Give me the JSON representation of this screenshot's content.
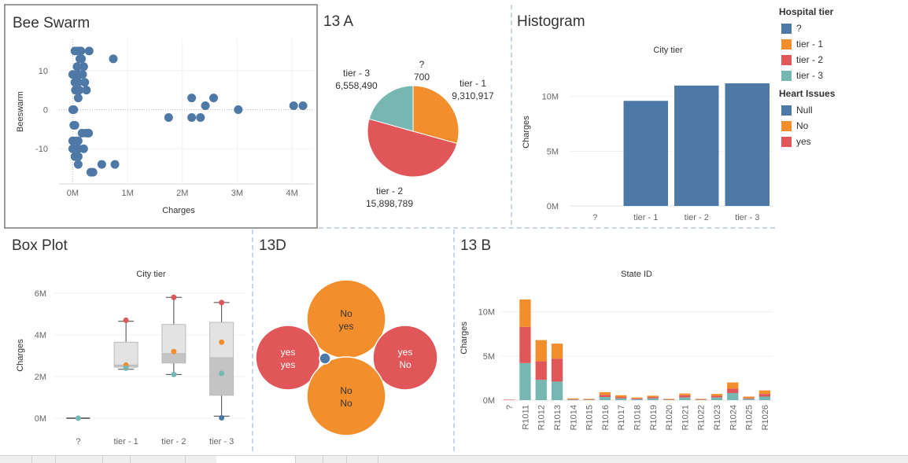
{
  "colors": {
    "blue": "#4e79a7",
    "orange": "#f28e2b",
    "red": "#e15759",
    "teal": "#76b7b2",
    "grid": "#ececec"
  },
  "titles": {
    "beeswarm": "Bee Swarm",
    "pie": "13 A",
    "histogram": "Histogram",
    "boxplot": "Box Plot",
    "bubbles": "13D",
    "stacked": "13 B"
  },
  "legend": {
    "groups": [
      {
        "title": "Hospital tier",
        "items": [
          {
            "label": "?",
            "color": "#4e79a7"
          },
          {
            "label": "tier - 1",
            "color": "#f28e2b"
          },
          {
            "label": "tier - 2",
            "color": "#e15759"
          },
          {
            "label": "tier - 3",
            "color": "#76b7b2"
          }
        ]
      },
      {
        "title": "Heart Issues",
        "items": [
          {
            "label": "Null",
            "color": "#4e79a7"
          },
          {
            "label": "No",
            "color": "#f28e2b"
          },
          {
            "label": "yes",
            "color": "#e15759"
          }
        ]
      }
    ]
  },
  "chart_data": [
    {
      "id": "beeswarm",
      "type": "scatter",
      "xlabel": "Charges",
      "ylabel": "Beeswarm",
      "xticks": [
        "0M",
        "1M",
        "2M",
        "3M",
        "4M"
      ],
      "yticks": [
        "10",
        "0",
        "-10"
      ],
      "xlim": [
        -0.25,
        4.4
      ],
      "ylim": [
        -19,
        18
      ],
      "points": [
        [
          0.04,
          15
        ],
        [
          0.1,
          15
        ],
        [
          0.15,
          15
        ],
        [
          0.3,
          15
        ],
        [
          0.74,
          13
        ],
        [
          0.13,
          13
        ],
        [
          0.16,
          13
        ],
        [
          0.08,
          11
        ],
        [
          0.2,
          11
        ],
        [
          0.0,
          9
        ],
        [
          0.07,
          9
        ],
        [
          0.12,
          9
        ],
        [
          0.18,
          9
        ],
        [
          0.04,
          7
        ],
        [
          0.1,
          7
        ],
        [
          0.22,
          7
        ],
        [
          0.05,
          5
        ],
        [
          0.12,
          5
        ],
        [
          0.25,
          5
        ],
        [
          0.1,
          3
        ],
        [
          0.0,
          0
        ],
        [
          0.02,
          0
        ],
        [
          3.02,
          0
        ],
        [
          0.02,
          -4
        ],
        [
          0.04,
          -4
        ],
        [
          0.17,
          -6
        ],
        [
          0.25,
          -6
        ],
        [
          0.29,
          -6
        ],
        [
          0.0,
          -8
        ],
        [
          0.06,
          -8
        ],
        [
          0.1,
          -8
        ],
        [
          0.0,
          -10
        ],
        [
          0.1,
          -10
        ],
        [
          0.2,
          -10
        ],
        [
          0.04,
          -12
        ],
        [
          0.1,
          -12
        ],
        [
          0.1,
          -14
        ],
        [
          0.53,
          -14
        ],
        [
          0.77,
          -14
        ],
        [
          0.33,
          -16
        ],
        [
          0.37,
          -16
        ],
        [
          2.17,
          3
        ],
        [
          2.57,
          3
        ],
        [
          2.42,
          1
        ],
        [
          4.03,
          1
        ],
        [
          4.2,
          1
        ],
        [
          1.75,
          -2
        ],
        [
          2.17,
          -2
        ],
        [
          2.33,
          -2
        ]
      ]
    },
    {
      "id": "pie",
      "type": "pie",
      "slices": [
        {
          "label": "?",
          "value": 700,
          "value_text": "700",
          "color": "#4e79a7"
        },
        {
          "label": "tier - 1",
          "value": 9310917,
          "value_text": "9,310,917",
          "color": "#f28e2b"
        },
        {
          "label": "tier - 2",
          "value": 15898789,
          "value_text": "15,898,789",
          "color": "#e15759"
        },
        {
          "label": "tier - 3",
          "value": 6558490,
          "value_text": "6,558,490",
          "color": "#76b7b2"
        }
      ]
    },
    {
      "id": "histogram",
      "type": "bar",
      "header": "City tier",
      "ylabel": "Charges",
      "categories": [
        "?",
        "tier - 1",
        "tier - 2",
        "tier - 3"
      ],
      "values": [
        0,
        9.6,
        11.0,
        11.2
      ],
      "yticks": [
        "10M",
        "5M",
        "0M"
      ],
      "ylim": [
        0,
        13.5
      ]
    },
    {
      "id": "boxplot",
      "type": "box",
      "header": "City tier",
      "ylabel": "Charges",
      "categories": [
        "?",
        "tier - 1",
        "tier - 2",
        "tier - 3"
      ],
      "yticks": [
        "6M",
        "4M",
        "2M",
        "0M"
      ],
      "ylim": [
        -0.3,
        6.3
      ],
      "boxes": [
        {
          "min": 0,
          "q1": 0,
          "median": 0,
          "q3": 0,
          "max": 0,
          "dots": [
            {
              "v": 0,
              "c": "#76b7b2"
            }
          ]
        },
        {
          "min": 2.35,
          "q1": 2.45,
          "median": 2.55,
          "q3": 3.65,
          "max": 4.65,
          "dots": [
            {
              "v": 4.7,
              "c": "#e15759"
            },
            {
              "v": 2.55,
              "c": "#f28e2b"
            },
            {
              "v": 2.4,
              "c": "#76b7b2"
            }
          ]
        },
        {
          "min": 2.1,
          "q1": 2.65,
          "median": 3.1,
          "q3": 4.5,
          "max": 5.8,
          "dots": [
            {
              "v": 5.8,
              "c": "#e15759"
            },
            {
              "v": 3.2,
              "c": "#f28e2b"
            },
            {
              "v": 2.1,
              "c": "#76b7b2"
            }
          ]
        },
        {
          "min": 0.1,
          "q1": 1.1,
          "median": 2.9,
          "q3": 4.6,
          "max": 5.55,
          "dots": [
            {
              "v": 5.55,
              "c": "#e15759"
            },
            {
              "v": 3.65,
              "c": "#f28e2b"
            },
            {
              "v": 2.15,
              "c": "#76b7b2"
            },
            {
              "v": 0.02,
              "c": "#4e79a7"
            }
          ]
        }
      ]
    },
    {
      "id": "bubbles",
      "type": "packed-bubble",
      "bubbles": [
        {
          "lines": [
            "No",
            "yes"
          ],
          "color": "#f28e2b",
          "text_color": "#333333"
        },
        {
          "lines": [
            "yes",
            "yes"
          ],
          "color": "#e15759",
          "text_color": "#ffffff"
        },
        {
          "lines": [
            "yes",
            "No"
          ],
          "color": "#e15759",
          "text_color": "#ffffff"
        },
        {
          "lines": [
            "No",
            "No"
          ],
          "color": "#f28e2b",
          "text_color": "#333333"
        },
        {
          "lines": [],
          "color": "#4e79a7",
          "text_color": "#ffffff"
        }
      ]
    },
    {
      "id": "stacked",
      "type": "bar",
      "header": "State ID",
      "ylabel": "Charges",
      "categories": [
        "?",
        "R1011",
        "R1012",
        "R1013",
        "R1014",
        "R1015",
        "R1016",
        "R1017",
        "R1018",
        "R1019",
        "R1020",
        "R1021",
        "R1022",
        "R1023",
        "R1024",
        "R1025",
        "R1026"
      ],
      "yticks": [
        "10M",
        "5M",
        "0M"
      ],
      "ylim": [
        0,
        13
      ],
      "series": [
        {
          "name": "tier - 3",
          "color": "#76b7b2",
          "values": [
            0,
            4.2,
            2.3,
            2.1,
            0.05,
            0.05,
            0.35,
            0.2,
            0.1,
            0.2,
            0.05,
            0.3,
            0.05,
            0.3,
            0.8,
            0.15,
            0.4
          ]
        },
        {
          "name": "tier - 2",
          "color": "#e15759",
          "values": [
            0.05,
            4.1,
            2.1,
            2.6,
            0.05,
            0.05,
            0.25,
            0.15,
            0.1,
            0.15,
            0.05,
            0.25,
            0.05,
            0.2,
            0.5,
            0.1,
            0.3
          ]
        },
        {
          "name": "tier - 1",
          "color": "#f28e2b",
          "values": [
            0,
            3.1,
            2.4,
            1.7,
            0.1,
            0.05,
            0.3,
            0.2,
            0.1,
            0.15,
            0.05,
            0.2,
            0.05,
            0.2,
            0.7,
            0.15,
            0.4
          ]
        }
      ]
    }
  ]
}
